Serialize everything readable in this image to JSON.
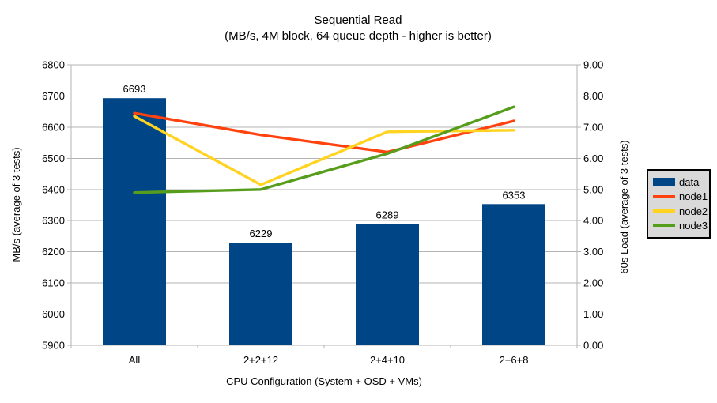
{
  "chart_data": {
    "type": "combo-bar-line",
    "title": "Sequential Read",
    "subtitle": "(MB/s, 4M block, 64 queue depth - higher is better)",
    "categories": [
      "All",
      "2+2+12",
      "2+4+10",
      "2+6+8"
    ],
    "bar_series": {
      "name": "data",
      "axis": "left",
      "color": "#004586",
      "values": [
        6693,
        6229,
        6289,
        6353
      ]
    },
    "line_series": [
      {
        "name": "node1",
        "axis": "right",
        "color": "#FF420E",
        "values": [
          7.45,
          6.75,
          6.2,
          7.2
        ]
      },
      {
        "name": "node2",
        "axis": "right",
        "color": "#FFD320",
        "values": [
          7.35,
          5.15,
          6.85,
          6.9
        ]
      },
      {
        "name": "node3",
        "axis": "right",
        "color": "#579D1C",
        "values": [
          4.9,
          5.0,
          6.15,
          7.65
        ]
      }
    ],
    "left_axis": {
      "label": "MB/s (average of 3 tests)",
      "min": 5900,
      "max": 6800,
      "step": 100
    },
    "right_axis": {
      "label": "60s Load (average of 3 tests)",
      "min": 0,
      "max": 9,
      "step": 1,
      "decimals": 2
    },
    "x_axis": {
      "label": "CPU Configuration (System + OSD + VMs)"
    },
    "legend": {
      "position": "right",
      "entries": [
        "data",
        "node1",
        "node2",
        "node3"
      ]
    },
    "grid": "horizontal-on",
    "style": {
      "background": "#FFFFFF",
      "gridline_color": "#B3B3B3",
      "axis_color": "#B3B3B3",
      "text_color": "#000000",
      "legend_bg": "#D9D9D9",
      "legend_border": "#000000"
    }
  }
}
